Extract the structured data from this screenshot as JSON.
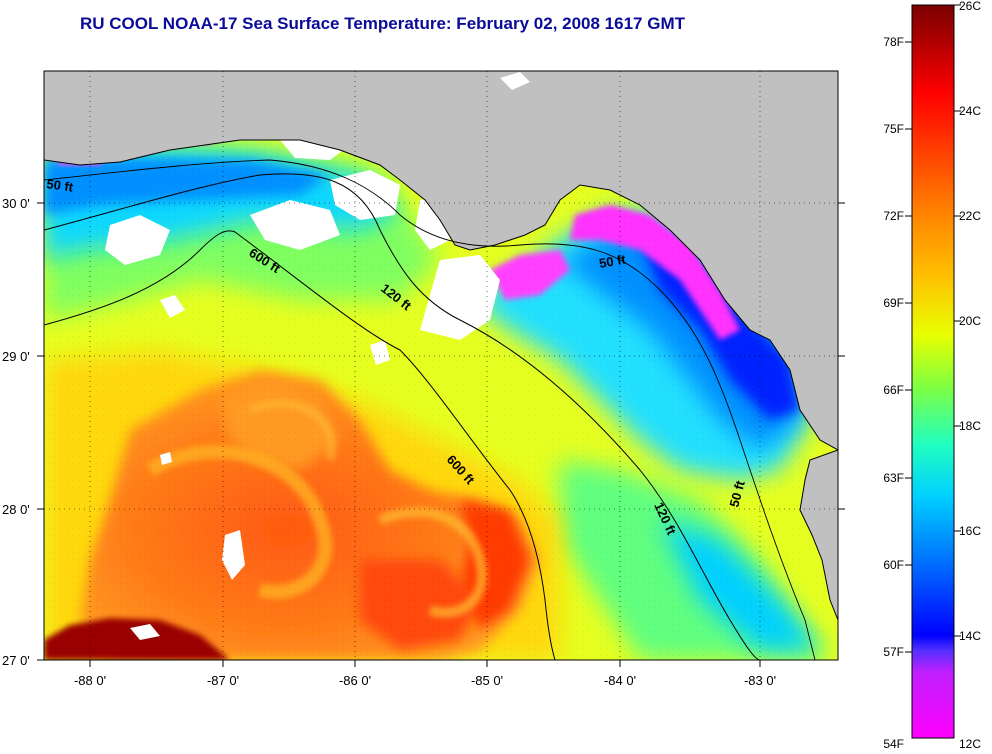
{
  "title": "RU COOL  NOAA-17  Sea Surface Temperature:  February 02, 2008 1617 GMT",
  "map": {
    "longitude_ticks": [
      "-88 0'",
      "-87 0'",
      "-86 0'",
      "-85 0'",
      "-84 0'",
      "-83 0'"
    ],
    "latitude_ticks": [
      "30 0'",
      "29 0'",
      "28 0'",
      "27 0'"
    ],
    "contour_labels": [
      {
        "id": "c50-west",
        "text": "50 ft"
      },
      {
        "id": "c600-north",
        "text": "600 ft"
      },
      {
        "id": "c120-north",
        "text": "120 ft"
      },
      {
        "id": "c50-east",
        "text": "50 ft"
      },
      {
        "id": "c600-south",
        "text": "600 ft"
      },
      {
        "id": "c120-south",
        "text": "120 ft"
      },
      {
        "id": "c50-south",
        "text": "50 ft"
      }
    ]
  },
  "colorbar": {
    "fahrenheit_labels": [
      "78F",
      "75F",
      "72F",
      "69F",
      "66F",
      "63F",
      "60F",
      "57F",
      "54F"
    ],
    "celsius_labels": [
      "26C",
      "24C",
      "22C",
      "20C",
      "18C",
      "16C",
      "14C",
      "12C"
    ],
    "scale_colors": [
      "#ff00ff",
      "#8000ff",
      "#0000ff",
      "#00a0ff",
      "#00ffff",
      "#80ff40",
      "#ffff00",
      "#ff9900",
      "#ff3300",
      "#ff0000",
      "#800000"
    ]
  },
  "colors": {
    "land": "#c0c0c0",
    "title": "#0b0b9a",
    "cloud": "#ffffff"
  }
}
